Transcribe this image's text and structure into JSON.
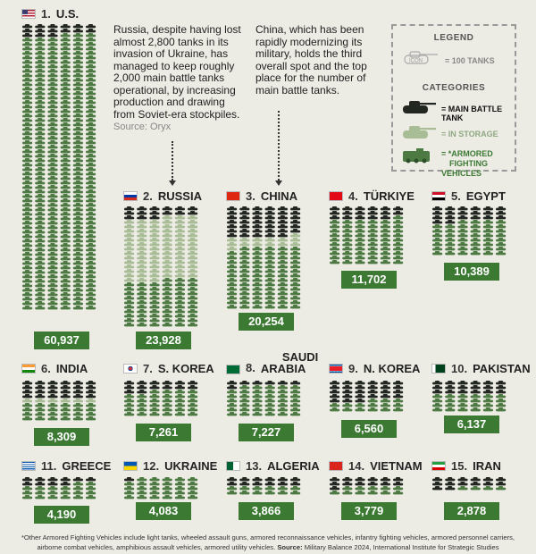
{
  "colors": {
    "battle": "#222722",
    "storage": "#a8bc96",
    "afv": "#4c7a42",
    "badge": "#3c7a34",
    "background": "#ecebe4"
  },
  "annotations": {
    "russia": "Russia, despite having lost almost 2,800 tanks in its invasion of Ukraine, has managed to keep roughly 2,000 main battle tanks operational, by increasing production and drawing from Soviet-era stockpiles.",
    "russia_source": "Source: Oryx",
    "china": "China, which has been rapidly modernizing its military, holds the third overall spot and the top place for the number of main battle tanks."
  },
  "legend": {
    "title": "LEGEND",
    "icon_label": "ICON",
    "icon_value": "= 100 TANKS",
    "categories_title": "CATEGORIES",
    "main_battle_tank": "= MAIN BATTLE TANK",
    "in_storage": "= IN STORAGE",
    "afv_line1": "= *ARMORED",
    "afv_line2": "FIGHTING VEHICLES"
  },
  "chart_data": {
    "type": "pictograph",
    "unit": "100 TANKS",
    "categories_legend": [
      "MAIN BATTLE TANK",
      "IN STORAGE",
      "*ARMORED FIGHTING VEHICLES"
    ],
    "countries": [
      {
        "rank": "1.",
        "name": "U.S.",
        "total": "60,937",
        "total_value": 60937,
        "flag": "us"
      },
      {
        "rank": "2.",
        "name": "RUSSIA",
        "total": "23,928",
        "total_value": 23928,
        "flag": "ru"
      },
      {
        "rank": "3.",
        "name": "CHINA",
        "total": "20,254",
        "total_value": 20254,
        "flag": "cn"
      },
      {
        "rank": "4.",
        "name": "TÜRKIYE",
        "total": "11,702",
        "total_value": 11702,
        "flag": "tr"
      },
      {
        "rank": "5.",
        "name": "EGYPT",
        "total": "10,389",
        "total_value": 10389,
        "flag": "eg"
      },
      {
        "rank": "6.",
        "name": "INDIA",
        "total": "8,309",
        "total_value": 8309,
        "flag": "in"
      },
      {
        "rank": "7.",
        "name": "S. KOREA",
        "total": "7,261",
        "total_value": 7261,
        "flag": "kr"
      },
      {
        "rank": "8.",
        "name": "SAUDI ARABIA",
        "name_line1": "SAUDI",
        "name_line2": "ARABIA",
        "total": "7,227",
        "total_value": 7227,
        "flag": "sa"
      },
      {
        "rank": "9.",
        "name": "N. KOREA",
        "total": "6,560",
        "total_value": 6560,
        "flag": "kp"
      },
      {
        "rank": "10.",
        "name": "PAKISTAN",
        "total": "6,137",
        "total_value": 6137,
        "flag": "pk"
      },
      {
        "rank": "11.",
        "name": "GREECE",
        "total": "4,190",
        "total_value": 4190,
        "flag": "gr"
      },
      {
        "rank": "12.",
        "name": "UKRAINE",
        "total": "4,083",
        "total_value": 4083,
        "flag": "ua"
      },
      {
        "rank": "13.",
        "name": "ALGERIA",
        "total": "3,866",
        "total_value": 3866,
        "flag": "dz"
      },
      {
        "rank": "14.",
        "name": "VIETNAM",
        "total": "3,779",
        "total_value": 3779,
        "flag": "vn"
      },
      {
        "rank": "15.",
        "name": "IRAN",
        "total": "2,878",
        "total_value": 2878,
        "flag": "ir"
      }
    ]
  },
  "footer": {
    "line1": "*Other Armored Fighting Vehicles include light tanks, wheeled assault guns, armored reconnaissance vehicles, infantry fighting vehicles, armored personnel carriers,",
    "line2a": "airborne combat vehicles, amphibious assault vehicles, armored utility vehicles. ",
    "source_label": "Source:",
    "line2b": " Military Balance 2024, International Institute for Strategic Studies"
  }
}
